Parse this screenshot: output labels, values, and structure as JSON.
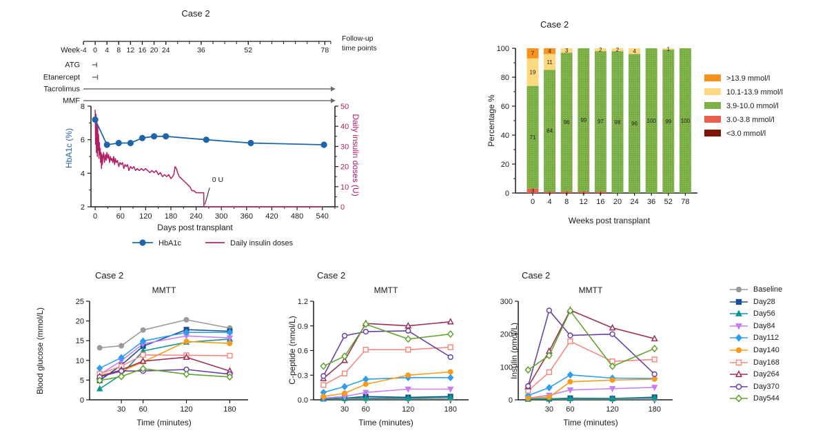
{
  "colors": {
    "hba1c": "#1f66a9",
    "insulin": "#b11e63",
    "axis": "#1a1a1a",
    "therapy": "#6d6d6d",
    "bar_label": "#222222",
    "green_texture_dot": "#a6ca75"
  },
  "top_left": {
    "week_label": "Week",
    "week_ticks": [
      -4,
      0,
      4,
      8,
      12,
      16,
      20,
      24,
      36,
      52,
      78
    ],
    "week_minor_step": 4,
    "week_range": [
      -4,
      80
    ],
    "followup_line1": "Follow-up",
    "followup_line2": "time points",
    "therapies": [
      {
        "name": "ATG",
        "start": -1,
        "end": 0.5,
        "style": "stop"
      },
      {
        "name": "Etanercept",
        "start": -1,
        "end": 0.8,
        "style": "stop"
      },
      {
        "name": "Tacrolimus",
        "start": -4,
        "end": 80,
        "style": "arrow"
      },
      {
        "name": "MMF",
        "start": -4,
        "end": 80,
        "style": "arrow"
      }
    ],
    "legend": [
      {
        "label": "HbA1c",
        "color": "#1f66a9",
        "marker": "circle"
      },
      {
        "label": "Daily insulin doses",
        "color": "#b11e63",
        "marker": "line"
      }
    ]
  },
  "mmtt_series": [
    {
      "name": "Baseline",
      "color": "#9a9a9a",
      "marker": "circle",
      "open": false
    },
    {
      "name": "Day28",
      "color": "#1b4f8f",
      "marker": "square",
      "open": false
    },
    {
      "name": "Day56",
      "color": "#0f968f",
      "marker": "triangle",
      "open": false
    },
    {
      "name": "Day84",
      "color": "#cохот",
      "marker": "triangle-down",
      "open": false
    },
    {
      "name": "Day112",
      "color": "#2e9df2",
      "marker": "diamond",
      "open": false
    },
    {
      "name": "Day140",
      "color": "#f89c1c",
      "marker": "circle",
      "open": false
    },
    {
      "name": "Day168",
      "color": "#f58a7e",
      "marker": "square",
      "open": true
    },
    {
      "name": "Day264",
      "color": "#9c2f56",
      "marker": "triangle",
      "open": true
    },
    {
      "name": "Day370",
      "color": "#6740a5",
      "marker": "circle",
      "open": true
    },
    {
      "name": "Day544",
      "color": "#5fa32d",
      "marker": "diamond",
      "open": true
    }
  ],
  "chart_data": [
    {
      "id": "hba1c-insulin",
      "type": "line",
      "title": "Case 2",
      "xlabel": "Days post transplant",
      "ylabel_left": "HbA1c (%)",
      "ylabel_right": "Daily insulin doses (U)",
      "xlim": [
        -10,
        570
      ],
      "xticks": [
        0,
        60,
        120,
        180,
        240,
        300,
        360,
        420,
        480,
        540
      ],
      "xminor_step": 30,
      "ylim_left": [
        2,
        8
      ],
      "yticks_left": [
        2,
        4,
        6,
        8
      ],
      "yminor_left": [
        3,
        5,
        7
      ],
      "ylim_right": [
        0,
        50
      ],
      "yticks_right": [
        0,
        10,
        20,
        30,
        40,
        50
      ],
      "yminor_right": [
        5,
        15,
        25,
        35,
        45
      ],
      "hba1c": {
        "x": [
          0,
          28,
          56,
          84,
          112,
          140,
          168,
          264,
          370,
          544
        ],
        "y": [
          7.2,
          5.7,
          5.8,
          5.8,
          6.1,
          6.2,
          6.2,
          6.0,
          5.8,
          5.7
        ]
      },
      "insulin": {
        "x": [
          0,
          1,
          2,
          3,
          4,
          5,
          6,
          7,
          8,
          9,
          10,
          11,
          12,
          13,
          14,
          15,
          16,
          17,
          18,
          20,
          22,
          24,
          26,
          28,
          30,
          32,
          34,
          36,
          38,
          40,
          42,
          44,
          46,
          48,
          50,
          53,
          56,
          59,
          62,
          65,
          68,
          71,
          74,
          77,
          80,
          84,
          88,
          92,
          96,
          100,
          105,
          110,
          115,
          120,
          125,
          130,
          135,
          140,
          145,
          150,
          155,
          160,
          165,
          170,
          175,
          180,
          184,
          187,
          190,
          193,
          196,
          200,
          205,
          210,
          215,
          220,
          225,
          230,
          235,
          240,
          245,
          250,
          254,
          258,
          258.5,
          300,
          360,
          420,
          480,
          540
        ],
        "y": [
          48,
          31,
          46,
          27,
          43,
          25,
          40,
          28,
          36,
          24,
          32,
          26,
          29,
          22,
          27,
          19,
          26,
          21,
          24,
          27,
          22,
          26,
          23,
          27,
          24,
          26,
          22,
          25,
          23,
          24,
          22,
          25,
          21,
          24,
          22,
          23,
          20,
          22,
          21,
          22,
          19,
          21,
          20,
          21,
          18,
          20,
          19,
          20,
          18,
          19,
          18,
          19,
          18,
          19,
          18,
          17,
          18,
          17,
          18,
          16,
          17,
          15,
          16,
          15,
          16,
          14,
          15,
          16,
          20,
          19,
          17,
          15,
          14,
          13,
          12,
          11,
          10,
          8,
          8,
          7,
          7,
          7,
          7,
          7,
          0,
          0,
          0,
          0,
          0,
          0
        ]
      },
      "annotation": {
        "text": "0 U",
        "text_xy": [
          278,
          12.3
        ],
        "line": [
          [
            272,
            9.5
          ],
          [
            261,
            1.2
          ]
        ]
      }
    },
    {
      "id": "glucose-range-distribution",
      "type": "bar-stacked",
      "title": "Case 2",
      "xlabel": "Weeks post transplant",
      "ylabel": "Percentage %",
      "categories": [
        "0",
        "4",
        "8",
        "12",
        "16",
        "20",
        "24",
        "36",
        "52",
        "78"
      ],
      "ylim": [
        0,
        100
      ],
      "yticks": [
        0,
        20,
        40,
        60,
        80,
        100
      ],
      "yminor_step": 10,
      "series": [
        {
          "name": "<3.0  mmol/l",
          "color": "#7e150b",
          "pattern": false,
          "values": [
            0,
            0,
            0,
            0,
            0,
            0,
            0,
            0,
            0,
            0
          ]
        },
        {
          "name": "3.0-3.8 mmol/l",
          "color": "#e8604c",
          "pattern": false,
          "values": [
            3,
            1,
            1,
            1,
            1,
            0,
            0,
            0,
            0,
            0
          ]
        },
        {
          "name": "3.9-10.0 mmol/l",
          "color": "#76ab3f",
          "pattern": true,
          "values": [
            71,
            84,
            96,
            99,
            97,
            98,
            96,
            100,
            99,
            100
          ]
        },
        {
          "name": "10.1-13.9 mmol/l",
          "color": "#fcd97e",
          "pattern": false,
          "values": [
            19,
            11,
            3,
            0,
            2,
            2,
            4,
            0,
            1,
            0
          ]
        },
        {
          "name": ">13.9 mmol/l",
          "color": "#f6921e",
          "pattern": false,
          "values": [
            7,
            4,
            0,
            0,
            0,
            0,
            0,
            0,
            0,
            0
          ]
        }
      ],
      "legend_order": [
        4,
        3,
        2,
        1,
        0
      ]
    },
    {
      "id": "mmtt-blood-glucose",
      "type": "line",
      "title": "Case 2",
      "subtitle": "MMTT",
      "xlabel": "Time (minutes)",
      "ylabel": "Blood glucose (mmol/L)",
      "x": [
        0,
        30,
        60,
        120,
        180
      ],
      "xticks": [
        30,
        60,
        120,
        180
      ],
      "ylim": [
        0,
        25
      ],
      "yticks": [
        0,
        5,
        10,
        15,
        20,
        25
      ],
      "ydecimals": 0,
      "series": [
        {
          "name": "Baseline",
          "y": [
            13.2,
            13.7,
            17.7,
            20.3,
            18.2
          ]
        },
        {
          "name": "Day28",
          "y": [
            4.9,
            8.8,
            13.6,
            17.8,
            17.4
          ]
        },
        {
          "name": "Day56",
          "y": [
            2.8,
            6.4,
            12.4,
            14.6,
            15.4
          ]
        },
        {
          "name": "Day84",
          "y": [
            6.4,
            9.9,
            14.2,
            16.2,
            15.7
          ]
        },
        {
          "name": "Day112",
          "y": [
            8.0,
            10.7,
            14.9,
            17.1,
            17.1
          ]
        },
        {
          "name": "Day140",
          "y": [
            6.3,
            7.2,
            9.6,
            14.8,
            14.3
          ]
        },
        {
          "name": "Day168",
          "y": [
            6.6,
            8.5,
            11.4,
            11.3,
            11.2
          ]
        },
        {
          "name": "Day264",
          "y": [
            5.9,
            7.6,
            9.8,
            10.8,
            7.3
          ]
        },
        {
          "name": "Day370",
          "y": [
            5.8,
            7.3,
            7.3,
            7.7,
            6.5
          ]
        },
        {
          "name": "Day544",
          "y": [
            4.9,
            5.9,
            7.9,
            6.5,
            5.8
          ]
        }
      ]
    },
    {
      "id": "mmtt-c-peptide",
      "type": "line",
      "title": "Case 2",
      "subtitle": "MMTT",
      "xlabel": "Time (minutes)",
      "ylabel": "C-peptide (nmol/L)",
      "x": [
        0,
        30,
        60,
        120,
        180
      ],
      "xticks": [
        30,
        60,
        120,
        180
      ],
      "ylim": [
        0,
        1.2
      ],
      "yticks": [
        0,
        0.3,
        0.6,
        0.9,
        1.2
      ],
      "ydecimals": 1,
      "series": [
        {
          "name": "Baseline",
          "y": [
            0.01,
            0.01,
            0.01,
            0.01,
            0.01
          ]
        },
        {
          "name": "Day28",
          "y": [
            0.02,
            0.02,
            0.04,
            0.03,
            0.04
          ]
        },
        {
          "name": "Day56",
          "y": [
            0.01,
            0.02,
            0.02,
            0.02,
            0.03
          ]
        },
        {
          "name": "Day84",
          "y": [
            0.02,
            0.04,
            0.09,
            0.13,
            0.13
          ]
        },
        {
          "name": "Day112",
          "y": [
            0.09,
            0.16,
            0.25,
            0.27,
            0.27
          ]
        },
        {
          "name": "Day140",
          "y": [
            0.04,
            0.08,
            0.19,
            0.3,
            0.34
          ]
        },
        {
          "name": "Day168",
          "y": [
            0.18,
            0.32,
            0.61,
            0.61,
            0.64
          ]
        },
        {
          "name": "Day264",
          "y": [
            0.26,
            0.48,
            0.93,
            0.9,
            0.95
          ]
        },
        {
          "name": "Day370",
          "y": [
            0.29,
            0.78,
            0.83,
            0.84,
            0.52
          ]
        },
        {
          "name": "Day544",
          "y": [
            0.41,
            0.53,
            0.92,
            0.74,
            0.8
          ]
        }
      ]
    },
    {
      "id": "mmtt-insulin",
      "type": "line",
      "title": "Case 2",
      "subtitle": "MMTT",
      "xlabel": "Time (minutes)",
      "ylabel": "Insulin (pmol/L)",
      "x": [
        0,
        30,
        60,
        120,
        180
      ],
      "xticks": [
        30,
        60,
        120,
        180
      ],
      "ylim": [
        0,
        300
      ],
      "yticks": [
        0,
        100,
        200,
        300
      ],
      "ydecimals": 0,
      "series": [
        {
          "name": "Baseline",
          "y": [
            2,
            2,
            2,
            2,
            2
          ]
        },
        {
          "name": "Day28",
          "y": [
            3,
            3,
            5,
            4,
            8
          ]
        },
        {
          "name": "Day56",
          "y": [
            2,
            3,
            4,
            4,
            6
          ]
        },
        {
          "name": "Day84",
          "y": [
            5,
            14,
            30,
            34,
            38
          ]
        },
        {
          "name": "Day112",
          "y": [
            13,
            37,
            76,
            66,
            65
          ]
        },
        {
          "name": "Day140",
          "y": [
            5,
            8,
            55,
            60,
            63
          ]
        },
        {
          "name": "Day168",
          "y": [
            28,
            84,
            178,
            117,
            123
          ]
        },
        {
          "name": "Day264",
          "y": [
            40,
            148,
            273,
            219,
            186
          ]
        },
        {
          "name": "Day370",
          "y": [
            42,
            272,
            196,
            200,
            78
          ]
        },
        {
          "name": "Day544",
          "y": [
            91,
            135,
            271,
            102,
            156
          ]
        }
      ]
    }
  ]
}
